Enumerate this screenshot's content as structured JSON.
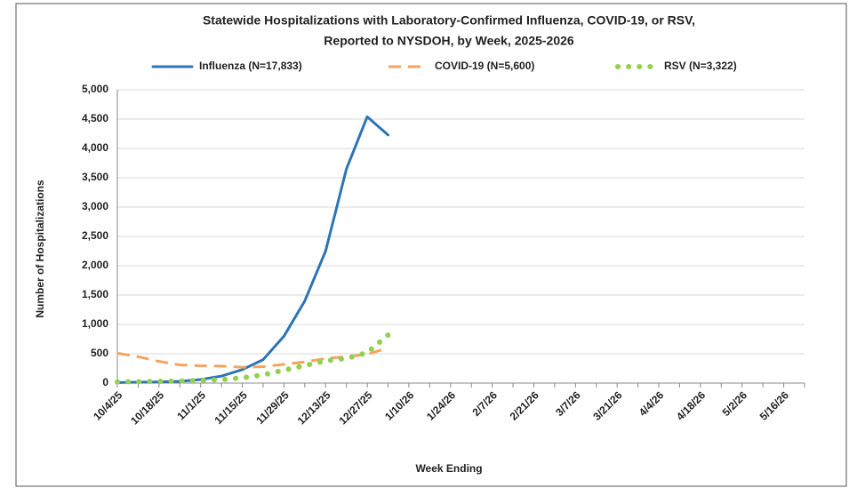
{
  "chart_data": {
    "type": "line",
    "title": "Statewide Hospitalizations with Laboratory-Confirmed  Influenza, COVID-19, or RSV,",
    "subtitle": "Reported to NYSDOH, by Week, 2025-2026",
    "x_label": "Week Ending",
    "y_label": "Number of Hospitalizations",
    "categories": [
      "10/4/25",
      null,
      "10/18/25",
      null,
      "11/1/25",
      null,
      "11/15/25",
      null,
      "11/29/25",
      null,
      "12/13/25",
      null,
      "12/27/25",
      null,
      "1/10/26",
      null,
      "1/24/26",
      null,
      "2/7/26",
      null,
      "2/21/26",
      null,
      "3/7/26",
      null,
      "3/21/26",
      null,
      "4/4/26",
      null,
      "4/18/26",
      null,
      "5/2/26",
      null,
      "5/16/26",
      null
    ],
    "series": [
      {
        "name": "Influenza (N=17,833)",
        "color": "#2e75b6",
        "style": "solid",
        "values": [
          10,
          15,
          20,
          30,
          60,
          120,
          230,
          400,
          800,
          1400,
          2250,
          3650,
          4540,
          4230,
          null,
          null,
          null,
          null,
          null,
          null,
          null,
          null,
          null,
          null,
          null,
          null,
          null,
          null,
          null,
          null,
          null,
          null,
          null,
          null
        ]
      },
      {
        "name": "COVID-19 (N=5,600)",
        "color": "#f4a460",
        "style": "dashed",
        "values": [
          510,
          450,
          370,
          310,
          295,
          290,
          270,
          280,
          320,
          360,
          420,
          450,
          490,
          600,
          null,
          null,
          null,
          null,
          null,
          null,
          null,
          null,
          null,
          null,
          null,
          null,
          null,
          null,
          null,
          null,
          null,
          null,
          null,
          null
        ]
      },
      {
        "name": "RSV (N=3,322)",
        "color": "#92d050",
        "style": "dotted",
        "values": [
          20,
          25,
          30,
          35,
          45,
          60,
          90,
          140,
          220,
          300,
          380,
          420,
          520,
          820,
          null,
          null,
          null,
          null,
          null,
          null,
          null,
          null,
          null,
          null,
          null,
          null,
          null,
          null,
          null,
          null,
          null,
          null,
          null,
          null
        ]
      }
    ],
    "ylim": [
      0,
      5000
    ],
    "yticks": [
      {
        "value": 0,
        "label": "0"
      },
      {
        "value": 500,
        "label": "500"
      },
      {
        "value": 1000,
        "label": "1,000"
      },
      {
        "value": 1500,
        "label": "1,500"
      },
      {
        "value": 2000,
        "label": "2,000"
      },
      {
        "value": 2500,
        "label": "2,500"
      },
      {
        "value": 3000,
        "label": "3,000"
      },
      {
        "value": 3500,
        "label": "3,500"
      },
      {
        "value": 4000,
        "label": "4,000"
      },
      {
        "value": 4500,
        "label": "4,500"
      },
      {
        "value": 5000,
        "label": "5,000"
      }
    ],
    "grid": true,
    "legend": "top"
  }
}
